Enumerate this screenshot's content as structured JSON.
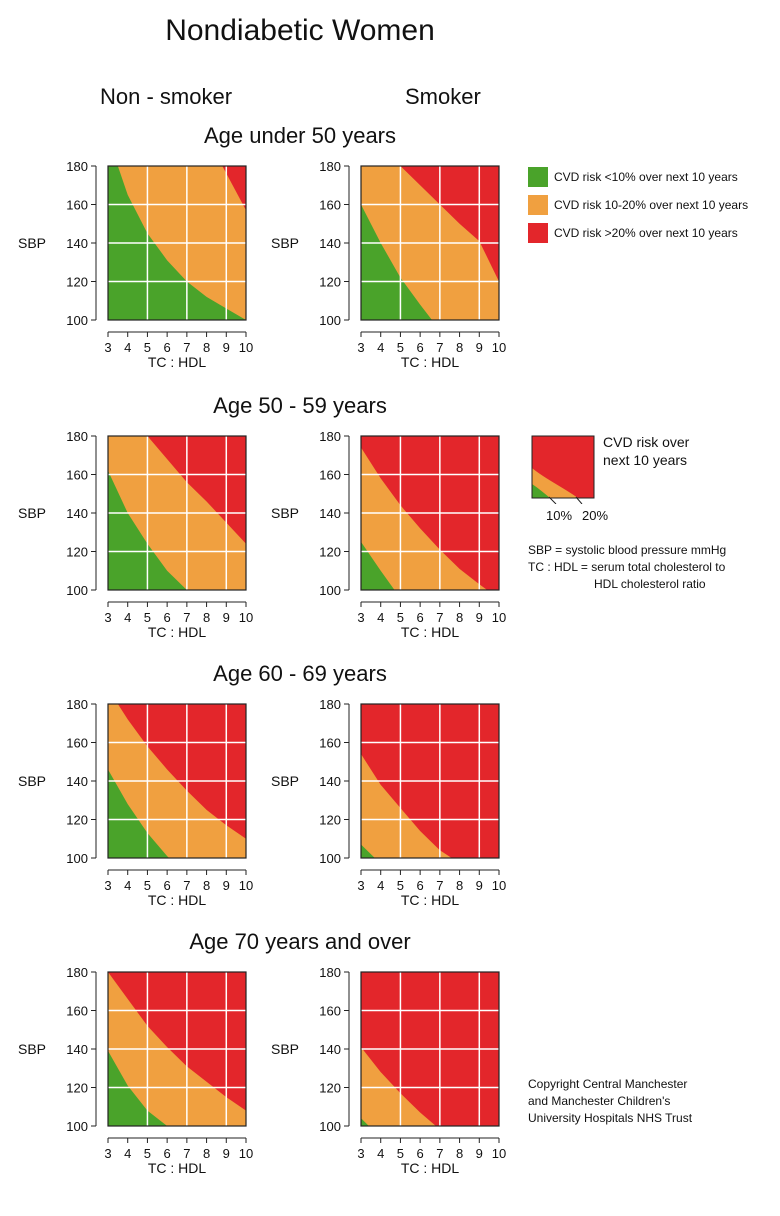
{
  "title": "Nondiabetic Women",
  "column_headers": {
    "nonsmoker": "Non - smoker",
    "smoker": "Smoker"
  },
  "colors": {
    "green": "#4aa32a",
    "orange": "#f0a040",
    "red": "#e3262b",
    "grid": "#ffffff",
    "axis": "#222222"
  },
  "legend": [
    {
      "color_key": "green",
      "label": "CVD risk <10% over next 10 years"
    },
    {
      "color_key": "orange",
      "label": "CVD risk 10-20% over next 10 years"
    },
    {
      "color_key": "red",
      "label": "CVD risk >20% over next 10 years"
    }
  ],
  "key_box": {
    "title_line1": "CVD risk over",
    "title_line2": "next 10 years",
    "label_10": "10%",
    "label_20": "20%"
  },
  "notes": [
    "SBP = systolic blood pressure mmHg",
    "TC : HDL = serum total cholesterol to",
    "HDL cholesterol ratio"
  ],
  "copyright": [
    "Copyright Central Manchester",
    "and Manchester Children's",
    "University Hospitals NHS Trust"
  ],
  "chart_data": {
    "type": "heatmap",
    "xlabel": "TC : HDL",
    "ylabel": "SBP",
    "xlim": [
      3,
      10
    ],
    "ylim": [
      100,
      180
    ],
    "x_ticks": [
      3,
      4,
      5,
      6,
      7,
      8,
      9,
      10
    ],
    "y_ticks": [
      100,
      120,
      140,
      160,
      180
    ],
    "panels": [
      {
        "age_group": "Age under 50 years",
        "smoking": "Non - smoker",
        "boundary_10pct": [
          [
            3,
            180
          ],
          [
            3.5,
            180
          ],
          [
            4,
            165
          ],
          [
            5,
            145
          ],
          [
            6,
            131
          ],
          [
            7,
            120
          ],
          [
            8,
            112
          ],
          [
            9,
            106
          ],
          [
            10,
            100
          ]
        ],
        "boundary_20pct": [
          [
            8.8,
            180
          ],
          [
            10,
            157
          ]
        ]
      },
      {
        "age_group": "Age under 50 years",
        "smoking": "Smoker",
        "boundary_10pct": [
          [
            3,
            160
          ],
          [
            4,
            140
          ],
          [
            5,
            122
          ],
          [
            6,
            108
          ],
          [
            6.6,
            100
          ]
        ],
        "boundary_20pct": [
          [
            5,
            180
          ],
          [
            6,
            170
          ],
          [
            7,
            160
          ],
          [
            8,
            150
          ],
          [
            9,
            141
          ],
          [
            10,
            120
          ]
        ]
      },
      {
        "age_group": "Age 50 - 59 years",
        "smoking": "Non - smoker",
        "boundary_10pct": [
          [
            3,
            162
          ],
          [
            4,
            140
          ],
          [
            5,
            124
          ],
          [
            6,
            110
          ],
          [
            7,
            100
          ]
        ],
        "boundary_20pct": [
          [
            5,
            180
          ],
          [
            6,
            168
          ],
          [
            7,
            156
          ],
          [
            8,
            146
          ],
          [
            9,
            135
          ],
          [
            10,
            124
          ]
        ]
      },
      {
        "age_group": "Age 50 - 59 years",
        "smoking": "Smoker",
        "boundary_10pct": [
          [
            3,
            125
          ],
          [
            4,
            110
          ],
          [
            4.7,
            100
          ]
        ],
        "boundary_20pct": [
          [
            3,
            174
          ],
          [
            4,
            158
          ],
          [
            5,
            144
          ],
          [
            6,
            132
          ],
          [
            7,
            121
          ],
          [
            8,
            111
          ],
          [
            9,
            103
          ],
          [
            9.4,
            100
          ]
        ]
      },
      {
        "age_group": "Age 60 - 69 years",
        "smoking": "Non - smoker",
        "boundary_10pct": [
          [
            3,
            146
          ],
          [
            4,
            128
          ],
          [
            5,
            113
          ],
          [
            6,
            101
          ],
          [
            6.1,
            100
          ]
        ],
        "boundary_20pct": [
          [
            3.5,
            180
          ],
          [
            4,
            172
          ],
          [
            5,
            158
          ],
          [
            6,
            146
          ],
          [
            7,
            135
          ],
          [
            8,
            125
          ],
          [
            9,
            117
          ],
          [
            10,
            110
          ]
        ]
      },
      {
        "age_group": "Age 60 - 69 years",
        "smoking": "Smoker",
        "boundary_10pct": [
          [
            3,
            107
          ],
          [
            3.7,
            100
          ]
        ],
        "boundary_20pct": [
          [
            3,
            154
          ],
          [
            4,
            138
          ],
          [
            5,
            126
          ],
          [
            6,
            114
          ],
          [
            7,
            104
          ],
          [
            7.6,
            100
          ]
        ]
      },
      {
        "age_group": "Age 70 years and over",
        "smoking": "Non - smoker",
        "boundary_10pct": [
          [
            3,
            139
          ],
          [
            4,
            121
          ],
          [
            5,
            108
          ],
          [
            6,
            100
          ]
        ],
        "boundary_20pct": [
          [
            3,
            180
          ],
          [
            4,
            166
          ],
          [
            5,
            152
          ],
          [
            6,
            141
          ],
          [
            7,
            131
          ],
          [
            8,
            123
          ],
          [
            9,
            115
          ],
          [
            10,
            108
          ]
        ]
      },
      {
        "age_group": "Age 70 years and over",
        "smoking": "Smoker",
        "boundary_10pct": [
          [
            3,
            104
          ],
          [
            3.4,
            100
          ]
        ],
        "boundary_20pct": [
          [
            3,
            141
          ],
          [
            4,
            128
          ],
          [
            5,
            117
          ],
          [
            6,
            107
          ],
          [
            6.8,
            100
          ]
        ]
      }
    ]
  }
}
